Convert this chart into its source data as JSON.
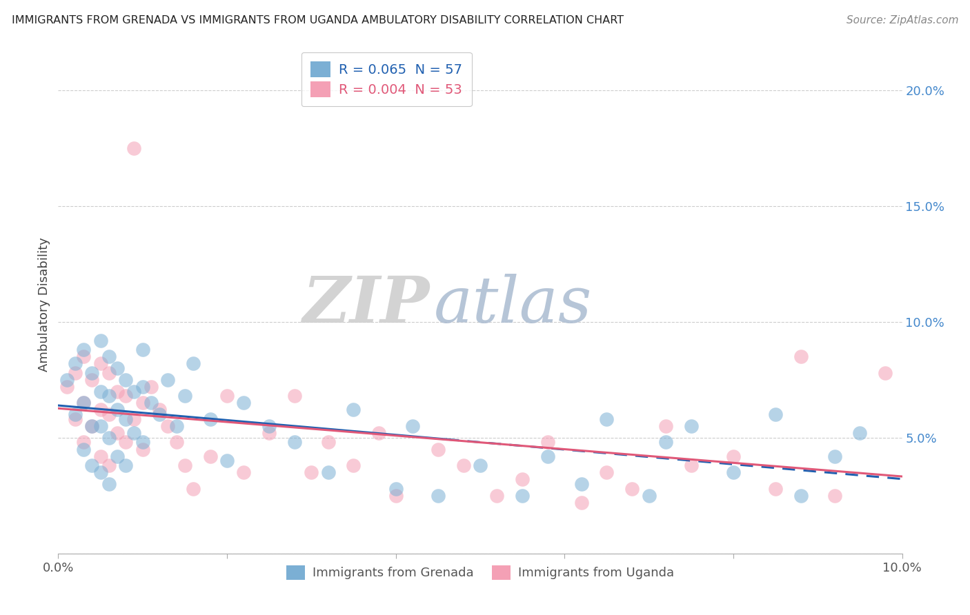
{
  "title": "IMMIGRANTS FROM GRENADA VS IMMIGRANTS FROM UGANDA AMBULATORY DISABILITY CORRELATION CHART",
  "source": "Source: ZipAtlas.com",
  "ylabel": "Ambulatory Disability",
  "xlim": [
    0.0,
    0.1
  ],
  "ylim": [
    0.0,
    0.215
  ],
  "grenada_R": 0.065,
  "grenada_N": 57,
  "uganda_R": 0.004,
  "uganda_N": 53,
  "grenada_color": "#7bafd4",
  "uganda_color": "#f4a0b5",
  "grenada_line_color": "#2060b0",
  "uganda_line_color": "#e05878",
  "watermark_zip": "ZIP",
  "watermark_atlas": "atlas",
  "background_color": "#ffffff",
  "grenada_x": [
    0.001,
    0.002,
    0.002,
    0.003,
    0.003,
    0.003,
    0.004,
    0.004,
    0.004,
    0.005,
    0.005,
    0.005,
    0.005,
    0.006,
    0.006,
    0.006,
    0.006,
    0.007,
    0.007,
    0.007,
    0.008,
    0.008,
    0.008,
    0.009,
    0.009,
    0.01,
    0.01,
    0.01,
    0.011,
    0.012,
    0.013,
    0.014,
    0.015,
    0.016,
    0.018,
    0.02,
    0.022,
    0.025,
    0.028,
    0.032,
    0.035,
    0.04,
    0.042,
    0.045,
    0.05,
    0.055,
    0.058,
    0.062,
    0.065,
    0.07,
    0.072,
    0.075,
    0.08,
    0.085,
    0.088,
    0.092,
    0.095
  ],
  "grenada_y": [
    0.075,
    0.082,
    0.06,
    0.088,
    0.065,
    0.045,
    0.078,
    0.055,
    0.038,
    0.092,
    0.07,
    0.055,
    0.035,
    0.085,
    0.068,
    0.05,
    0.03,
    0.08,
    0.062,
    0.042,
    0.075,
    0.058,
    0.038,
    0.07,
    0.052,
    0.088,
    0.072,
    0.048,
    0.065,
    0.06,
    0.075,
    0.055,
    0.068,
    0.082,
    0.058,
    0.04,
    0.065,
    0.055,
    0.048,
    0.035,
    0.062,
    0.028,
    0.055,
    0.025,
    0.038,
    0.025,
    0.042,
    0.03,
    0.058,
    0.025,
    0.048,
    0.055,
    0.035,
    0.06,
    0.025,
    0.042,
    0.052
  ],
  "uganda_x": [
    0.001,
    0.002,
    0.002,
    0.003,
    0.003,
    0.003,
    0.004,
    0.004,
    0.005,
    0.005,
    0.005,
    0.006,
    0.006,
    0.006,
    0.007,
    0.007,
    0.008,
    0.008,
    0.009,
    0.009,
    0.01,
    0.01,
    0.011,
    0.012,
    0.013,
    0.014,
    0.015,
    0.016,
    0.018,
    0.02,
    0.022,
    0.025,
    0.028,
    0.03,
    0.032,
    0.035,
    0.038,
    0.04,
    0.045,
    0.048,
    0.052,
    0.055,
    0.058,
    0.062,
    0.065,
    0.068,
    0.072,
    0.075,
    0.08,
    0.085,
    0.088,
    0.092,
    0.098
  ],
  "uganda_y": [
    0.072,
    0.078,
    0.058,
    0.085,
    0.065,
    0.048,
    0.075,
    0.055,
    0.082,
    0.062,
    0.042,
    0.078,
    0.06,
    0.038,
    0.07,
    0.052,
    0.068,
    0.048,
    0.175,
    0.058,
    0.065,
    0.045,
    0.072,
    0.062,
    0.055,
    0.048,
    0.038,
    0.028,
    0.042,
    0.068,
    0.035,
    0.052,
    0.068,
    0.035,
    0.048,
    0.038,
    0.052,
    0.025,
    0.045,
    0.038,
    0.025,
    0.032,
    0.048,
    0.022,
    0.035,
    0.028,
    0.055,
    0.038,
    0.042,
    0.028,
    0.085,
    0.025,
    0.078
  ],
  "legend_label_grenada": "R = 0.065  N = 57",
  "legend_label_uganda": "R = 0.004  N = 53",
  "bottom_label_grenada": "Immigrants from Grenada",
  "bottom_label_uganda": "Immigrants from Uganda"
}
